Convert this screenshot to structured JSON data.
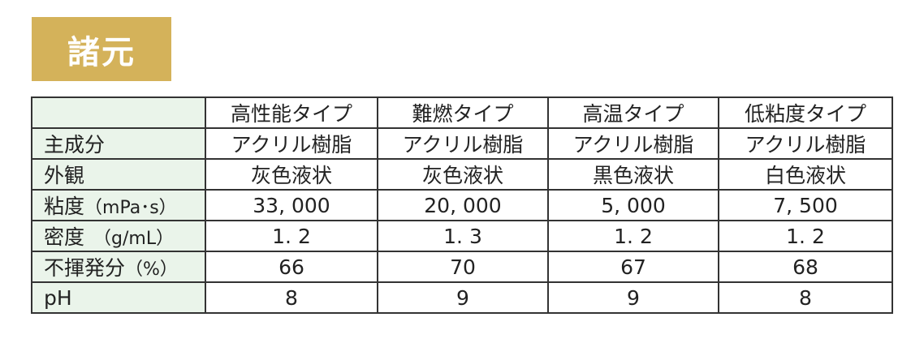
{
  "title": "諸元",
  "table": {
    "headers": [
      "",
      "高性能タイプ",
      "難燃タイプ",
      "高温タイプ",
      "低粘度タイプ"
    ],
    "rows": [
      {
        "label": "主成分",
        "unit": "",
        "values": [
          "アクリル樹脂",
          "アクリル樹脂",
          "アクリル樹脂",
          "アクリル樹脂"
        ]
      },
      {
        "label": "外観",
        "unit": "",
        "values": [
          "灰色液状",
          "灰色液状",
          "黒色液状",
          "白色液状"
        ]
      },
      {
        "label": "粘度",
        "unit": "（mPa･s）",
        "values": [
          "33, 000",
          "20, 000",
          "5, 000",
          "7, 500"
        ]
      },
      {
        "label": "密度",
        "unit": "　（g/mL）",
        "values": [
          "1. 2",
          "1. 3",
          "1. 2",
          "1. 2"
        ]
      },
      {
        "label": "不揮発分",
        "unit": "（%）",
        "values": [
          "66",
          "70",
          "67",
          "68"
        ]
      },
      {
        "label": "pH",
        "unit": "",
        "values": [
          "8",
          "9",
          "9",
          "8"
        ]
      }
    ]
  }
}
